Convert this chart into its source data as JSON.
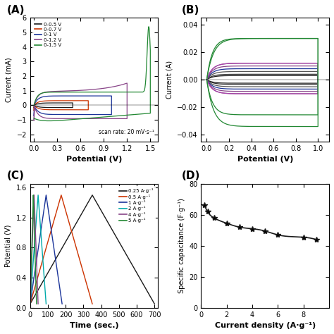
{
  "panel_A": {
    "label": "(A)",
    "legend_entries": [
      "0-0.5 V",
      "0-0.7 V",
      "0-1 V",
      "0-1.2 V",
      "0-1.5 V"
    ],
    "legend_colors": [
      "#1a1a1a",
      "#cc3300",
      "#1a3399",
      "#884488",
      "#228833"
    ],
    "scan_rate_text": "scan rate: 20 mV·s⁻¹",
    "xlabel": "Potential (V)",
    "ylabel": "Current (mA)",
    "xlim": [
      -0.05,
      1.6
    ],
    "ylim": [
      -2.5,
      6.0
    ]
  },
  "panel_B": {
    "label": "(B)",
    "xlabel": "Potential (V)",
    "ylabel": "Current (A)",
    "xlim": [
      -0.05,
      1.1
    ],
    "ylim": [
      -0.045,
      0.045
    ]
  },
  "panel_C": {
    "label": "(C)",
    "legend_entries": [
      "0.25 A·g⁻¹",
      "0.5 A·g⁻¹",
      "1 A·g⁻¹",
      "2 A·g⁻¹",
      "4 A·g⁻¹",
      "5 A·g⁻¹"
    ],
    "legend_colors": [
      "#1a1a1a",
      "#cc3300",
      "#1a3399",
      "#00aaaa",
      "#884488",
      "#228833"
    ],
    "xlabel": "Time (sec.)",
    "ylabel": "Potential (V)",
    "xlim": [
      0,
      720
    ],
    "ylim": [
      0,
      1.6
    ],
    "yticks": [
      0.0,
      0.4,
      0.8,
      1.2,
      1.6
    ]
  },
  "panel_D": {
    "label": "(D)",
    "x": [
      0.25,
      0.5,
      1.0,
      2.0,
      3.0,
      4.0,
      5.0,
      6.0,
      8.0,
      9.0
    ],
    "y": [
      66.5,
      62.0,
      58.0,
      54.5,
      52.0,
      51.0,
      49.5,
      47.0,
      45.5,
      44.0
    ],
    "color": "#1a1a1a",
    "marker": "*",
    "xlabel": "Current density (A·g⁻¹)",
    "ylabel": "Specific capacitance (F·g⁻¹)",
    "xlim": [
      0,
      10
    ],
    "ylim": [
      0,
      80
    ],
    "xticks": [
      0,
      2,
      4,
      6,
      8
    ],
    "yticks": [
      0,
      20,
      40,
      60,
      80
    ]
  }
}
